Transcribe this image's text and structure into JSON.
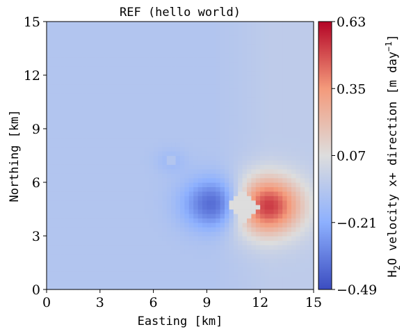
{
  "chart_data": {
    "type": "heatmap",
    "title": "REF (hello world)",
    "xlabel": "Easting [km]",
    "ylabel": "Northing [km]",
    "xlim": [
      0,
      15
    ],
    "ylim": [
      0,
      15
    ],
    "xticks": [
      "0",
      "3",
      "6",
      "9",
      "12",
      "15"
    ],
    "yticks": [
      "0",
      "3",
      "6",
      "9",
      "12",
      "15"
    ],
    "colormap": "coolwarm",
    "colorbar": {
      "label_prefix": "H",
      "label_sub": "2",
      "label_main": "O velocity x+ direction [m day",
      "label_sup": "−1",
      "label_suffix": "]",
      "min": -0.49,
      "max": 0.63,
      "ticks": [
        "0.63",
        "0.35",
        "0.07",
        "−0.21",
        "−0.49"
      ],
      "tick_values": [
        0.63,
        0.35,
        0.07,
        -0.21,
        -0.49
      ]
    },
    "field_features": {
      "background": -0.08,
      "negative_lobe": {
        "x": 9.6,
        "y": 4.8,
        "value": -0.49
      },
      "positive_lobe": {
        "x": 12.3,
        "y": 4.7,
        "value": 0.63
      },
      "secondary_negative_lobe": {
        "x": 7.0,
        "y": 7.2,
        "value": -0.2
      },
      "masked_region": {
        "x": 11.1,
        "y": 4.7,
        "value": 0.07
      },
      "masked_region_small": {
        "x": 7.0,
        "y": 7.2,
        "value": -0.08
      }
    }
  }
}
